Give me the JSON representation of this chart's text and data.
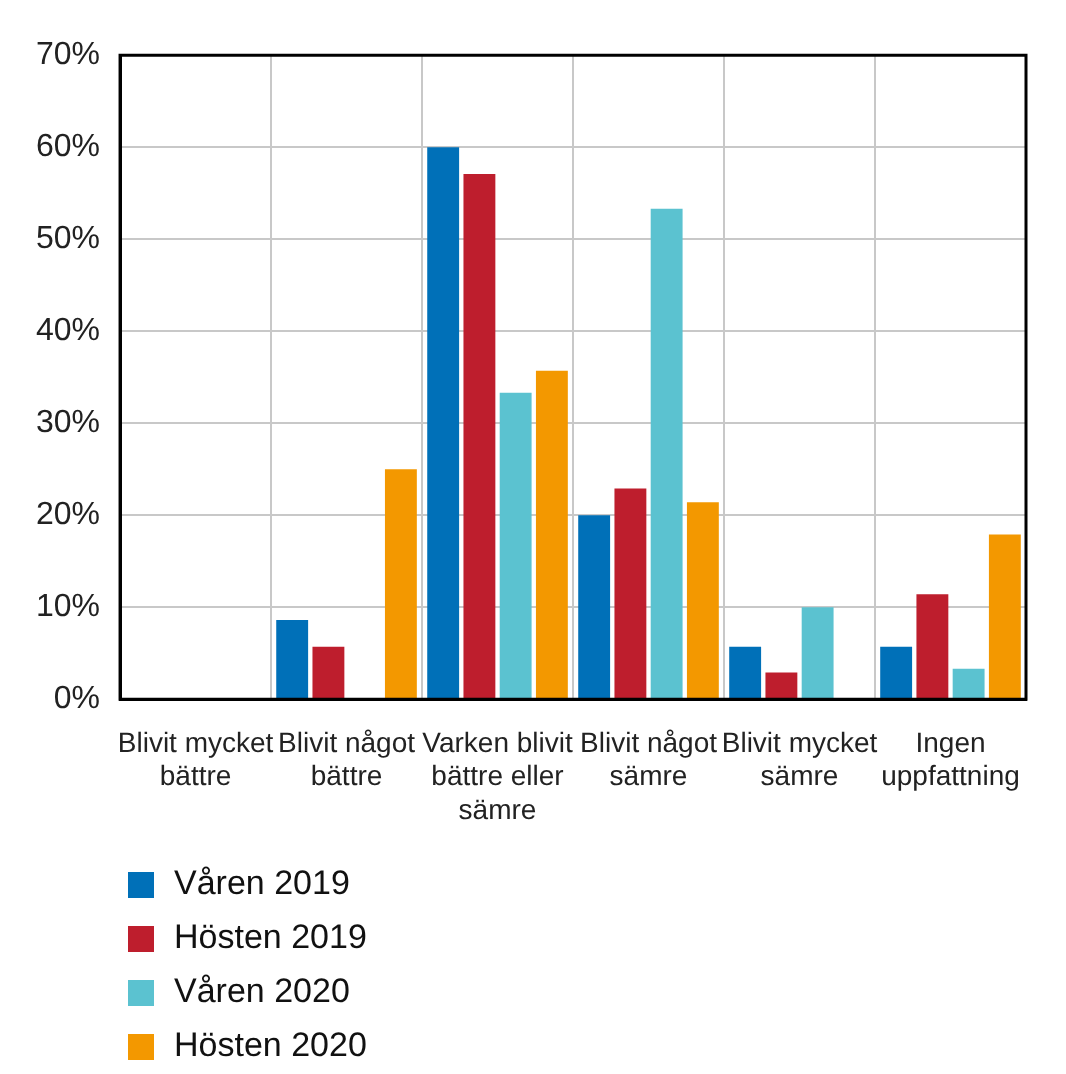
{
  "chart_data": {
    "type": "bar",
    "categories": [
      "Blivit mycket bättre",
      "Blivit något bättre",
      "Varken blivit bättre eller sämre",
      "Blivit något sämre",
      "Blivit mycket sämre",
      "Ingen uppfattning"
    ],
    "series": [
      {
        "name": "Våren 2019",
        "color": "#0070b8",
        "values": [
          0,
          8.6,
          60,
          20,
          5.7,
          5.7
        ]
      },
      {
        "name": "Hösten 2019",
        "color": "#be1e2d",
        "values": [
          0,
          5.7,
          57.1,
          22.9,
          2.9,
          11.4
        ]
      },
      {
        "name": "Våren 2020",
        "color": "#5bc2d0",
        "values": [
          0,
          0,
          33.3,
          53.3,
          10,
          3.3
        ]
      },
      {
        "name": "Hösten 2020",
        "color": "#f39800",
        "values": [
          0,
          25,
          35.7,
          21.4,
          0,
          17.9
        ]
      }
    ],
    "ylim": [
      0,
      70
    ],
    "yticks": [
      {
        "value": 0,
        "label": "0%"
      },
      {
        "value": 10,
        "label": "10%"
      },
      {
        "value": 20,
        "label": "20%"
      },
      {
        "value": 30,
        "label": "30%"
      },
      {
        "value": 40,
        "label": "40%"
      },
      {
        "value": 50,
        "label": "50%"
      },
      {
        "value": 60,
        "label": "60%"
      },
      {
        "value": 70,
        "label": "70%"
      }
    ],
    "grid": true,
    "legend": "bottom left"
  }
}
